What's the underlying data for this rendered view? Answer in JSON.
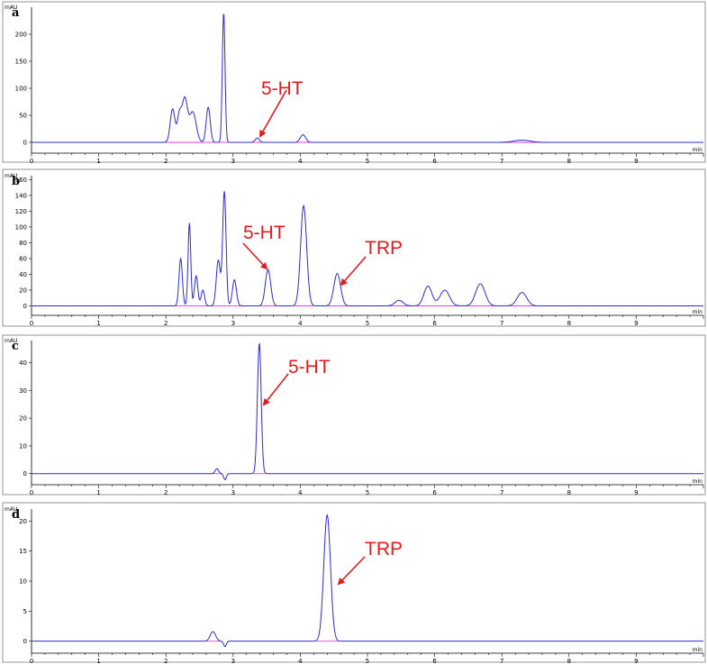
{
  "chart_data": [
    {
      "type": "line",
      "panel_label": "a",
      "ylabel": "mAU",
      "xlabel": "min",
      "xlim": [
        0,
        10
      ],
      "ylim": [
        -20,
        250
      ],
      "x_ticks": [
        0,
        1,
        2,
        3,
        4,
        5,
        6,
        7,
        8,
        9
      ],
      "y_ticks": [
        0,
        50,
        100,
        150,
        200
      ],
      "line_color": "#2b2bd6",
      "integration_color": "#e040e0",
      "peaks": [
        {
          "rt": 2.1,
          "height": 62,
          "width": 0.035
        },
        {
          "rt": 2.2,
          "height": 48,
          "width": 0.03
        },
        {
          "rt": 2.28,
          "height": 80,
          "width": 0.04
        },
        {
          "rt": 2.4,
          "height": 56,
          "width": 0.05
        },
        {
          "rt": 2.63,
          "height": 65,
          "width": 0.03
        },
        {
          "rt": 2.86,
          "height": 240,
          "width": 0.02
        },
        {
          "rt": 3.36,
          "height": 8,
          "width": 0.03
        },
        {
          "rt": 4.04,
          "height": 14,
          "width": 0.04
        },
        {
          "rt": 7.3,
          "height": 4,
          "width": 0.12
        }
      ],
      "annotations": [
        {
          "text": "5-HT",
          "color": "#e8191b",
          "target_rt": 3.36,
          "target_value": 8
        }
      ]
    },
    {
      "type": "line",
      "panel_label": "b",
      "ylabel": "mAU",
      "xlabel": "min",
      "xlim": [
        0,
        10
      ],
      "ylim": [
        -12,
        165
      ],
      "x_ticks": [
        0,
        1,
        2,
        3,
        4,
        5,
        6,
        7,
        8,
        9
      ],
      "y_ticks": [
        0,
        20,
        40,
        60,
        80,
        100,
        120,
        140,
        160
      ],
      "line_color": "#2b2bd6",
      "integration_color": "#e040e0",
      "peaks": [
        {
          "rt": 2.22,
          "height": 60,
          "width": 0.025
        },
        {
          "rt": 2.35,
          "height": 105,
          "width": 0.02
        },
        {
          "rt": 2.45,
          "height": 38,
          "width": 0.025
        },
        {
          "rt": 2.55,
          "height": 20,
          "width": 0.025
        },
        {
          "rt": 2.78,
          "height": 58,
          "width": 0.03
        },
        {
          "rt": 2.87,
          "height": 145,
          "width": 0.025
        },
        {
          "rt": 3.02,
          "height": 33,
          "width": 0.03
        },
        {
          "rt": 3.52,
          "height": 46,
          "width": 0.04
        },
        {
          "rt": 4.05,
          "height": 127,
          "width": 0.045
        },
        {
          "rt": 4.55,
          "height": 41,
          "width": 0.05
        },
        {
          "rt": 5.47,
          "height": 7,
          "width": 0.06
        },
        {
          "rt": 5.9,
          "height": 25,
          "width": 0.06
        },
        {
          "rt": 6.15,
          "height": 20,
          "width": 0.07
        },
        {
          "rt": 6.68,
          "height": 28,
          "width": 0.07
        },
        {
          "rt": 7.3,
          "height": 17,
          "width": 0.07
        }
      ],
      "annotations": [
        {
          "text": "5-HT",
          "color": "#e8191b",
          "target_rt": 3.52,
          "target_value": 46
        },
        {
          "text": "TRP",
          "color": "#e8191b",
          "target_rt": 4.55,
          "target_value": 41
        }
      ]
    },
    {
      "type": "line",
      "panel_label": "c",
      "ylabel": "mAU",
      "xlabel": "min",
      "xlim": [
        0,
        10
      ],
      "ylim": [
        -4,
        48
      ],
      "x_ticks": [
        0,
        1,
        2,
        3,
        4,
        5,
        6,
        7,
        8,
        9
      ],
      "y_ticks": [
        0,
        10,
        20,
        30,
        40
      ],
      "line_color": "#2b2bd6",
      "integration_color": "#e040e0",
      "peaks": [
        {
          "rt": 2.76,
          "height": 1.8,
          "width": 0.025
        },
        {
          "rt": 2.88,
          "height": -2.2,
          "width": 0.02
        },
        {
          "rt": 3.39,
          "height": 47,
          "width": 0.028
        }
      ],
      "annotations": [
        {
          "text": "5-HT",
          "color": "#e8191b",
          "target_rt": 3.39,
          "target_value": 47
        }
      ]
    },
    {
      "type": "line",
      "panel_label": "d",
      "ylabel": "mAU",
      "xlabel": "min",
      "xlim": [
        0,
        10
      ],
      "ylim": [
        -2,
        22
      ],
      "x_ticks": [
        0,
        1,
        2,
        3,
        4,
        5,
        6,
        7,
        8,
        9
      ],
      "y_ticks": [
        0,
        5,
        10,
        15,
        20
      ],
      "line_color": "#2b2bd6",
      "integration_color": "#e040e0",
      "peaks": [
        {
          "rt": 2.7,
          "height": 1.6,
          "width": 0.04
        },
        {
          "rt": 2.88,
          "height": -0.9,
          "width": 0.02
        },
        {
          "rt": 4.4,
          "height": 21,
          "width": 0.05
        }
      ],
      "annotations": [
        {
          "text": "TRP",
          "color": "#e8191b",
          "target_rt": 4.4,
          "target_value": 21
        }
      ]
    }
  ]
}
